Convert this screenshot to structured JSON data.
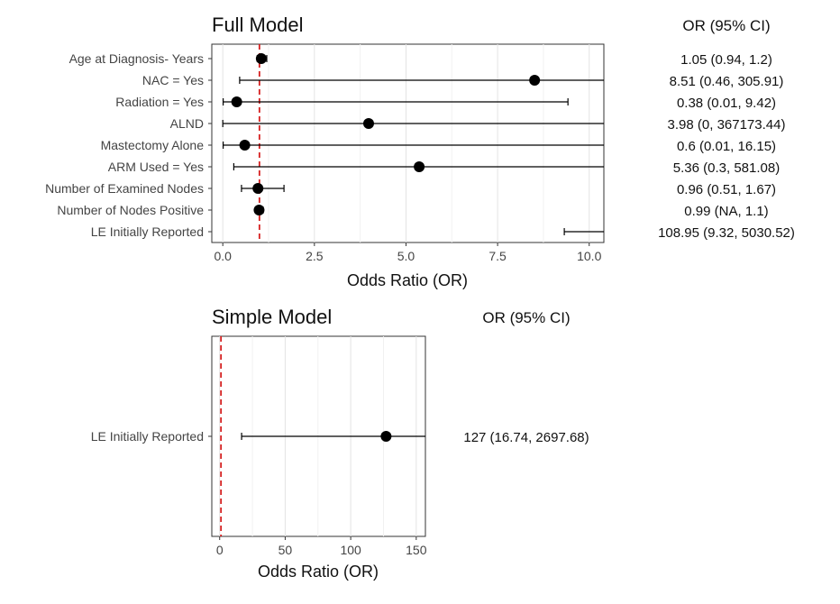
{
  "chart_data": [
    {
      "type": "forest",
      "title": "Full Model",
      "xlabel": "Odds Ratio (OR)",
      "ci_header": "OR (95% CI)",
      "xlim": [
        -0.3,
        10.4
      ],
      "xticks": [
        0,
        2.5,
        5,
        7.5,
        10
      ],
      "xtick_labels": [
        "0.0",
        "2.5",
        "5.0",
        "7.5",
        "10.0"
      ],
      "reference_line": 1,
      "rows": [
        {
          "label": "Age at Diagnosis- Years",
          "or": 1.05,
          "lo": 0.94,
          "hi": 1.2,
          "text": "1.05 (0.94, 1.2)"
        },
        {
          "label": "NAC = Yes",
          "or": 8.51,
          "lo": 0.46,
          "hi": 305.91,
          "text": "8.51 (0.46, 305.91)"
        },
        {
          "label": "Radiation = Yes",
          "or": 0.38,
          "lo": 0.01,
          "hi": 9.42,
          "text": "0.38 (0.01, 9.42)"
        },
        {
          "label": "ALND",
          "or": 3.98,
          "lo": 0,
          "hi": 367173.44,
          "text": "3.98 (0, 367173.44)"
        },
        {
          "label": "Mastectomy Alone",
          "or": 0.6,
          "lo": 0.01,
          "hi": 16.15,
          "text": "0.6 (0.01, 16.15)"
        },
        {
          "label": "ARM Used = Yes",
          "or": 5.36,
          "lo": 0.3,
          "hi": 581.08,
          "text": "5.36 (0.3, 581.08)"
        },
        {
          "label": "Number of Examined Nodes",
          "or": 0.96,
          "lo": 0.51,
          "hi": 1.67,
          "text": "0.96 (0.51, 1.67)"
        },
        {
          "label": "Number of Nodes Positive",
          "or": 0.99,
          "lo": null,
          "hi": 1.1,
          "text": "0.99 (NA, 1.1)"
        },
        {
          "label": "LE Initially Reported",
          "or": 108.95,
          "lo": 9.32,
          "hi": 5030.52,
          "text": "108.95 (9.32, 5030.52)"
        }
      ]
    },
    {
      "type": "forest",
      "title": "Simple Model",
      "xlabel": "Odds Ratio (OR)",
      "ci_header": "OR (95% CI)",
      "xlim": [
        -6,
        157
      ],
      "xticks": [
        0,
        50,
        100,
        150
      ],
      "xtick_labels": [
        "0",
        "50",
        "100",
        "150"
      ],
      "reference_line": 1,
      "rows": [
        {
          "label": "LE Initially Reported",
          "or": 127,
          "lo": 16.74,
          "hi": 2697.68,
          "text": "127 (16.74, 2697.68)"
        }
      ]
    }
  ]
}
